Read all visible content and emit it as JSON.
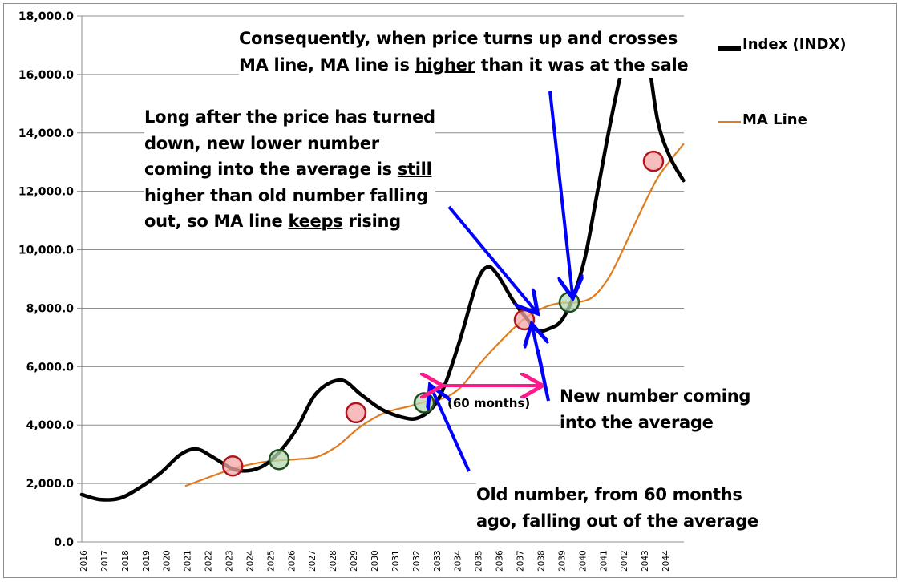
{
  "chart_data": {
    "type": "line",
    "title": "",
    "xlabel": "",
    "ylabel": "",
    "ylim": [
      0,
      18000
    ],
    "yticks": [
      0,
      2000,
      4000,
      6000,
      8000,
      10000,
      12000,
      14000,
      16000,
      18000
    ],
    "ytick_labels": [
      "0.0",
      "2,000.0",
      "4,000.0",
      "6,000.0",
      "8,000.0",
      "10,000.0",
      "12,000.0",
      "14,000.0",
      "16,000.0",
      "18,000.0"
    ],
    "xlim": [
      2015.93,
      2044.9
    ],
    "xtick_labels": [
      "2016",
      "2017",
      "2018",
      "2019",
      "2020",
      "2021",
      "2022",
      "2023",
      "2024",
      "2025",
      "2026",
      "2027",
      "2028",
      "2029",
      "2030",
      "2031",
      "2032",
      "2033",
      "2034",
      "2035",
      "2036",
      "2037",
      "2038",
      "2039",
      "2040",
      "2041",
      "2042",
      "2043",
      "2044"
    ],
    "grid": "horizontal",
    "legend_position": "right",
    "series": [
      {
        "name": "Index (INDX)",
        "color": "#000000",
        "x": [
          2015.92,
          2016.81,
          2017.78,
          2018.74,
          2019.71,
          2020.67,
          2021.44,
          2022.21,
          2023.18,
          2023.95,
          2024.72,
          2025.49,
          2026.26,
          2027.22,
          2028.38,
          2029.34,
          2030.31,
          2031.27,
          2032.04,
          2032.81,
          2033.39,
          2034.16,
          2034.93,
          2035.43,
          2035.9,
          2036.67,
          2037.25,
          2037.83,
          2038.41,
          2038.99,
          2039.57,
          2040.14,
          2040.72,
          2041.3,
          2041.88,
          2042.46,
          2043.04,
          2043.62,
          2044.2,
          2044.86
        ],
        "values": [
          1620,
          1450,
          1500,
          1870,
          2360,
          2990,
          3180,
          2910,
          2500,
          2440,
          2630,
          3130,
          3870,
          5100,
          5540,
          5050,
          4550,
          4280,
          4230,
          4610,
          5380,
          7020,
          8890,
          9410,
          9160,
          8260,
          7710,
          7240,
          7300,
          7570,
          8400,
          9770,
          11960,
          14160,
          16080,
          17200,
          17000,
          14430,
          13200,
          12370
        ]
      },
      {
        "name": "MA Line",
        "color": "#e07b1f",
        "x": [
          2020.93,
          2023.18,
          2024.72,
          2026.26,
          2027.22,
          2028.19,
          2029.34,
          2030.5,
          2031.66,
          2032.62,
          2033.39,
          2034.16,
          2035.13,
          2036.28,
          2037.25,
          2038.22,
          2038.99,
          2039.76,
          2040.53,
          2041.3,
          2042.07,
          2042.84,
          2043.62,
          2044.39,
          2044.86
        ],
        "values": [
          1920,
          2500,
          2740,
          2830,
          2910,
          3270,
          3950,
          4420,
          4640,
          4830,
          4940,
          5300,
          6150,
          7020,
          7660,
          8040,
          8180,
          8200,
          8400,
          9080,
          10180,
          11360,
          12460,
          13200,
          13610
        ]
      }
    ],
    "crossover_markers": [
      {
        "type": "sell",
        "color": "#f4a6a6",
        "border": "#b0141c",
        "x": 2023.18,
        "value": 2600
      },
      {
        "type": "buy",
        "color": "#b4d8b0",
        "border": "#1e4d1e",
        "x": 2025.41,
        "value": 2820
      },
      {
        "type": "sell",
        "color": "#f4a6a6",
        "border": "#b0141c",
        "x": 2029.11,
        "value": 4420
      },
      {
        "type": "buy",
        "color": "#b4d8b0",
        "border": "#1e4d1e",
        "x": 2032.39,
        "value": 4760
      },
      {
        "type": "sell",
        "color": "#f4a6a6",
        "border": "#b0141c",
        "x": 2037.21,
        "value": 7600
      },
      {
        "type": "buy",
        "color": "#b4d8b0",
        "border": "#1e4d1e",
        "x": 2039.37,
        "value": 8200
      },
      {
        "type": "sell",
        "color": "#f4a6a6",
        "border": "#b0141c",
        "x": 2043.42,
        "value": 13030
      }
    ],
    "annotations": [
      {
        "id": "consequently",
        "lines": [
          "Consequently, when price turns up and crosses",
          "MA line, MA line is |higher| than it was at the sale"
        ]
      },
      {
        "id": "long-after",
        "lines": [
          "Long after the price has turned",
          "down, new lower number",
          "coming into the average is |still|",
          "higher than old number falling",
          "out, so MA line |keeps| rising"
        ]
      },
      {
        "id": "new-number",
        "lines": [
          "New number coming",
          "into the average"
        ]
      },
      {
        "id": "old-number",
        "lines": [
          "Old number, from 60 months",
          "ago, falling out of the average"
        ]
      },
      {
        "id": "sixty-months",
        "lines": [
          "(60 months)"
        ]
      }
    ],
    "arrow_colors": {
      "pointer": "#0000ff",
      "span": "#ff1a8c"
    }
  },
  "legend": {
    "items": [
      {
        "label": "Index (INDX)",
        "color": "#000000"
      },
      {
        "label": "MA Line",
        "color": "#e07b1f"
      }
    ]
  },
  "text": {
    "consequently_1": "Consequently, when price turns up and crosses",
    "consequently_2a": "MA line, MA line is ",
    "consequently_2u": "higher",
    "consequently_2b": " than it was at the sale",
    "long_1": "Long after the price has turned",
    "long_2": "down, new lower number",
    "long_3a": "coming into the average is ",
    "long_3u": "still",
    "long_4": "higher than old number falling",
    "long_5a": "out, so MA line ",
    "long_5u": "keeps",
    "long_5b": " rising",
    "new_1": "New number coming",
    "new_2": "into the average",
    "old_1": "Old number, from 60 months",
    "old_2": "ago, falling out of the average",
    "sixty": "(60 months)"
  }
}
